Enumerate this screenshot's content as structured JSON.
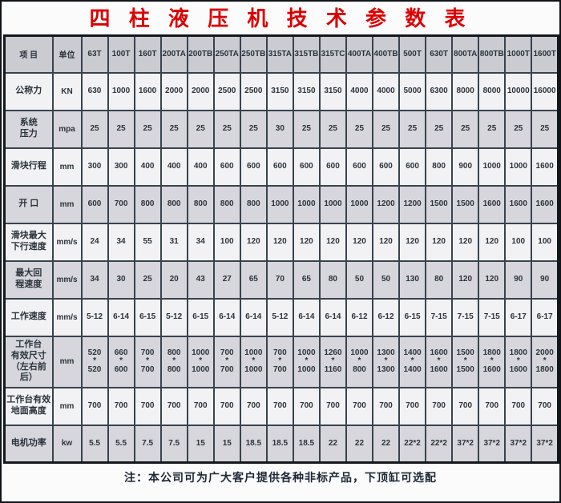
{
  "title": "四 柱 液 压 机 技 术 参 数 表",
  "note": "注：本公司可为广大客户提供各种非标产品，下顶缸可选配",
  "colors": {
    "title": "#dd0000",
    "grid": "#39434e",
    "header_bg": "#cbcbd2",
    "row_light": "#f2f2f4",
    "row_dark": "#d6d6dc"
  },
  "table": {
    "item_header": "项  目",
    "unit_header": "单位",
    "models": [
      "63T",
      "100T",
      "160T",
      "200TA",
      "200TB",
      "250TA",
      "250TB",
      "315TA",
      "315TB",
      "315TC",
      "400TA",
      "400TB",
      "500T",
      "630T",
      "800TA",
      "800TB",
      "1000T",
      "1600T"
    ],
    "rows": [
      {
        "label": "公称力",
        "unit": "KN",
        "values": [
          "630",
          "1000",
          "1600",
          "2000",
          "2000",
          "2500",
          "2500",
          "3150",
          "3150",
          "3150",
          "4000",
          "4000",
          "5000",
          "6300",
          "8000",
          "8000",
          "10000",
          "16000"
        ]
      },
      {
        "label": "系统\n压力",
        "unit": "mpa",
        "values": [
          "25",
          "25",
          "25",
          "25",
          "25",
          "25",
          "25",
          "30",
          "25",
          "25",
          "25",
          "25",
          "25",
          "25",
          "25",
          "25",
          "25",
          "25"
        ]
      },
      {
        "label": "滑块行程",
        "unit": "mm",
        "values": [
          "300",
          "300",
          "400",
          "400",
          "400",
          "600",
          "600",
          "600",
          "600",
          "600",
          "600",
          "600",
          "600",
          "800",
          "900",
          "1000",
          "1000",
          "1600"
        ]
      },
      {
        "label": "开  口",
        "unit": "mm",
        "values": [
          "600",
          "700",
          "800",
          "800",
          "800",
          "800",
          "800",
          "1000",
          "1000",
          "1000",
          "1000",
          "1200",
          "1200",
          "1500",
          "1500",
          "1600",
          "1600",
          "1600"
        ]
      },
      {
        "label": "滑块最大\n下行速度",
        "unit": "mm/s",
        "values": [
          "24",
          "34",
          "55",
          "31",
          "34",
          "100",
          "120",
          "120",
          "120",
          "120",
          "120",
          "120",
          "120",
          "120",
          "120",
          "120",
          "100",
          "100"
        ]
      },
      {
        "label": "最大回\n程速度",
        "unit": "mm/s",
        "values": [
          "34",
          "30",
          "25",
          "20",
          "43",
          "27",
          "65",
          "70",
          "65",
          "80",
          "50",
          "50",
          "130",
          "80",
          "120",
          "120",
          "90",
          "90"
        ]
      },
      {
        "label": "工作速度",
        "unit": "mm/s",
        "values": [
          "5-12",
          "6-14",
          "6-15",
          "5-12",
          "6-15",
          "6-14",
          "6-14",
          "5-12",
          "6-14",
          "6-14",
          "6-12",
          "6-12",
          "6-15",
          "7-15",
          "7-15",
          "7-15",
          "6-17",
          "6-17"
        ]
      },
      {
        "label": "工作台\n有效尺寸\n（左右前后）",
        "unit": "mm",
        "tall": true,
        "values": [
          "520\n*\n520",
          "660\n*\n600",
          "700\n*\n700",
          "800\n*\n800",
          "1000\n*\n1000",
          "700\n*\n700",
          "1000\n*\n1000",
          "700\n*\n700",
          "1000\n*\n1000",
          "1260\n*\n1160",
          "1000\n*\n800",
          "1300\n*\n1300",
          "1400\n*\n1400",
          "1600\n*\n1600",
          "1500\n*\n1500",
          "1800\n*\n1600",
          "1800\n*\n1600",
          "2000\n*\n1800"
        ]
      },
      {
        "label": "工作台有效\n地面高度",
        "unit": "mm",
        "values": [
          "700",
          "700",
          "700",
          "700",
          "700",
          "700",
          "700",
          "700",
          "700",
          "700",
          "700",
          "700",
          "700",
          "700",
          "700",
          "700",
          "700",
          "700"
        ]
      },
      {
        "label": "电机功率",
        "unit": "kw",
        "values": [
          "5.5",
          "5.5",
          "7.5",
          "7.5",
          "15",
          "15",
          "18.5",
          "18.5",
          "18.5",
          "22",
          "22",
          "22",
          "22*2",
          "22*2",
          "37*2",
          "37*2",
          "37*2",
          "37*2"
        ]
      }
    ]
  }
}
